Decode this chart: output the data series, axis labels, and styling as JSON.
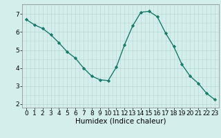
{
  "x": [
    0,
    1,
    2,
    3,
    4,
    5,
    6,
    7,
    8,
    9,
    10,
    11,
    12,
    13,
    14,
    15,
    16,
    17,
    18,
    19,
    20,
    21,
    22,
    23
  ],
  "y": [
    6.7,
    6.4,
    6.2,
    5.85,
    5.4,
    4.9,
    4.55,
    4.0,
    3.55,
    3.35,
    3.3,
    4.05,
    5.3,
    6.35,
    7.1,
    7.15,
    6.85,
    5.95,
    5.2,
    4.2,
    3.55,
    3.15,
    2.6,
    2.25
  ],
  "line_color": "#1a7a6a",
  "marker": "D",
  "marker_size": 2.2,
  "line_width": 1.0,
  "bg_color": "#d4eeeb",
  "grid_major_color": "#b8d8d4",
  "xlabel": "Humidex (Indice chaleur)",
  "xlabel_fontsize": 7.5,
  "tick_fontsize": 6.5,
  "ylim": [
    1.8,
    7.55
  ],
  "xlim": [
    -0.5,
    23.5
  ],
  "yticks": [
    2,
    3,
    4,
    5,
    6,
    7
  ],
  "xticks": [
    0,
    1,
    2,
    3,
    4,
    5,
    6,
    7,
    8,
    9,
    10,
    11,
    12,
    13,
    14,
    15,
    16,
    17,
    18,
    19,
    20,
    21,
    22,
    23
  ]
}
